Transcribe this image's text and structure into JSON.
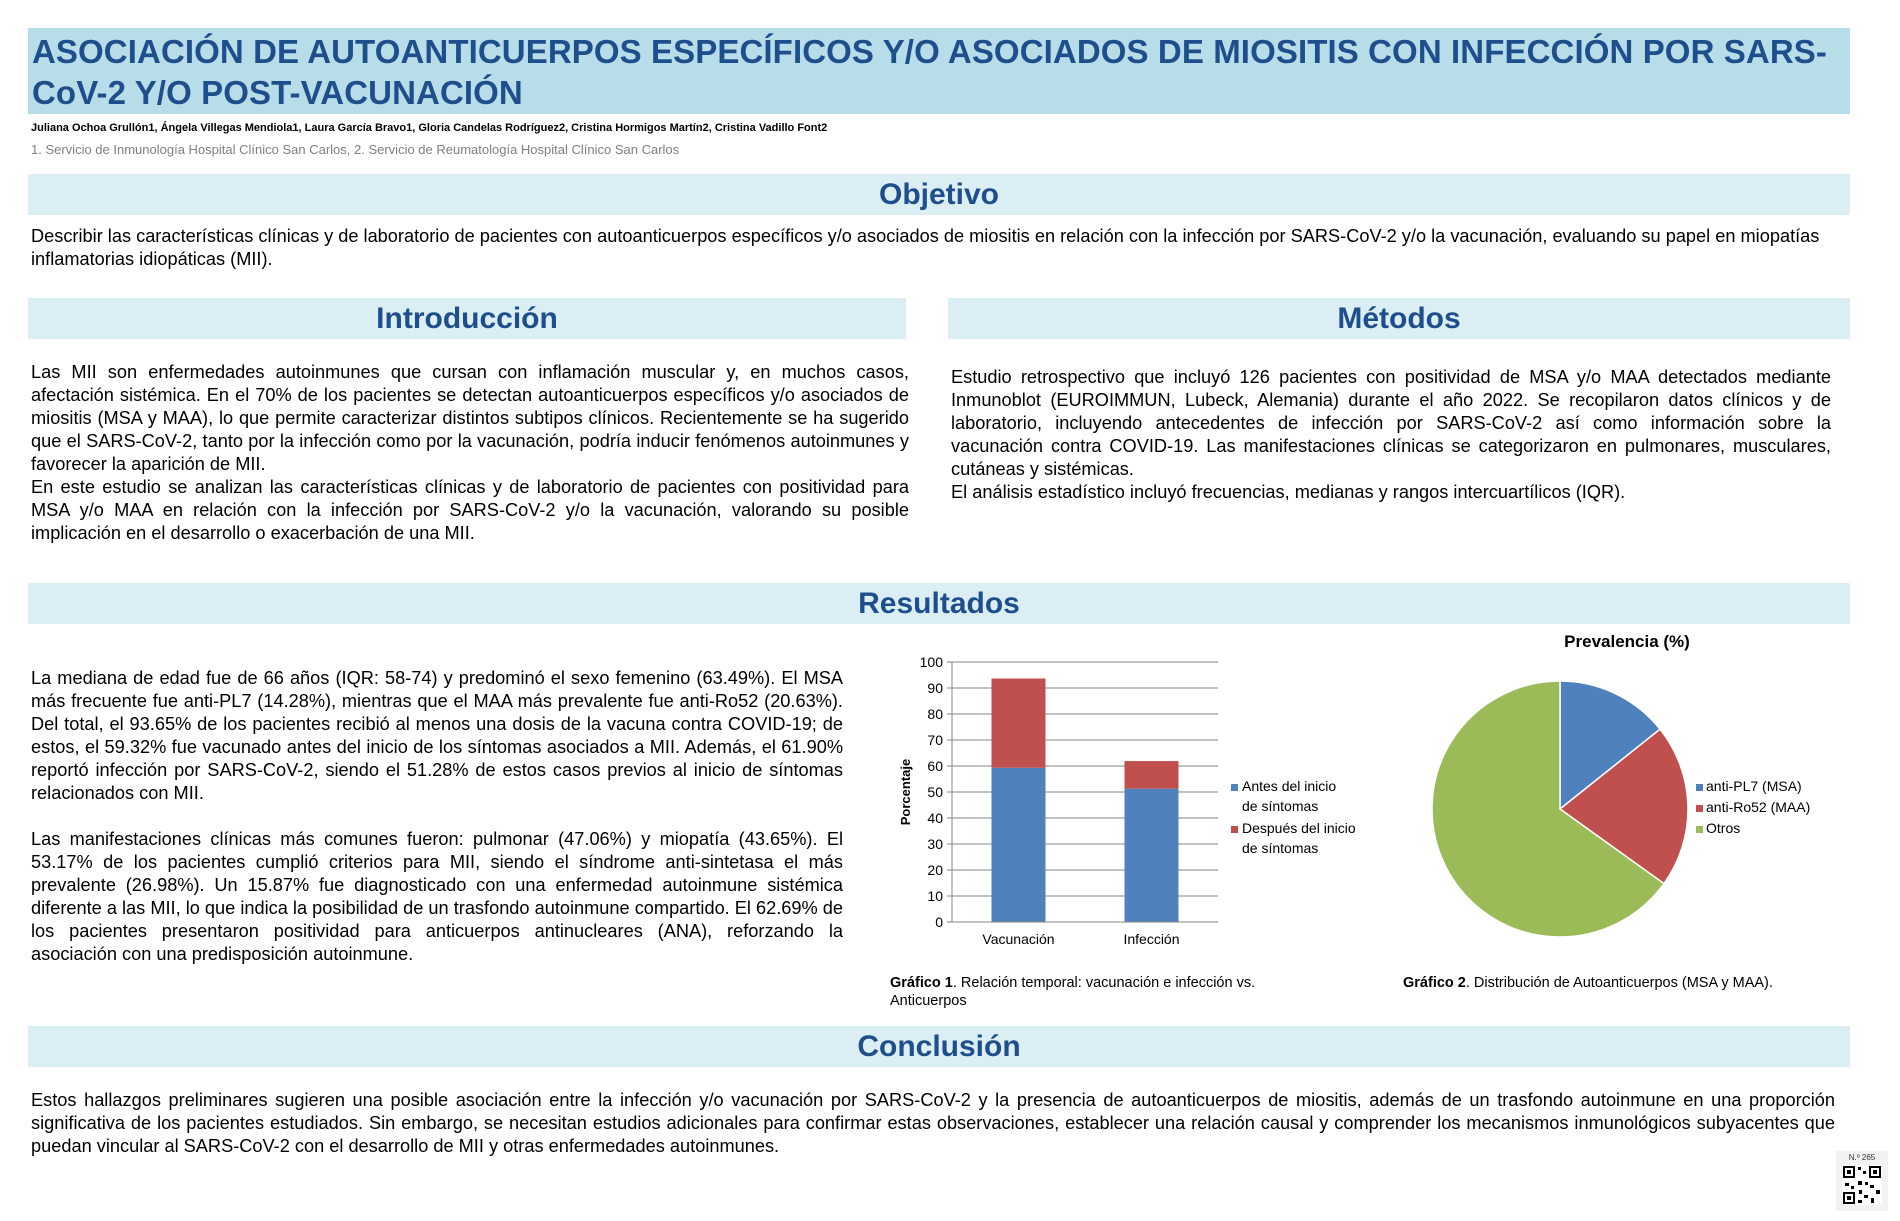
{
  "header": {
    "title": "ASOCIACIÓN DE AUTOANTICUERPOS ESPECÍFICOS Y/O ASOCIADOS DE MIOSITIS CON INFECCIÓN POR SARS-CoV-2 Y/O POST-VACUNACIÓN",
    "authors": "Juliana Ochoa Grullón1, Ángela Villegas Mendiola1, Laura García Bravo1, Gloria Candelas Rodríguez2, Cristina Hormigos Martín2, Cristina Vadillo Font2",
    "affiliations": "1. Servicio de Inmunología Hospital Clínico San Carlos, 2. Servicio de Reumatología Hospital Clínico San Carlos"
  },
  "objetivo": {
    "heading": "Objetivo",
    "text": "Describir las características clínicas y de laboratorio de pacientes con autoanticuerpos específicos y/o asociados de miositis en relación con la infección por SARS-CoV-2 y/o la vacunación, evaluando su papel en miopatías inflamatorias idiopáticas (MII)."
  },
  "introduccion": {
    "heading": "Introducción",
    "p1": "Las MII son enfermedades autoinmunes que cursan con inflamación muscular y, en muchos casos, afectación sistémica. En el 70% de los pacientes se detectan autoanticuerpos específicos y/o asociados de miositis (MSA y MAA), lo que permite caracterizar distintos subtipos clínicos. Recientemente se ha sugerido que el SARS-CoV-2, tanto por la infección como por la vacunación, podría inducir fenómenos autoinmunes y favorecer la aparición de MII.",
    "p2": "En este estudio se analizan las características clínicas y de laboratorio de pacientes con positividad para MSA y/o MAA en relación con la infección por SARS-CoV-2 y/o la vacunación, valorando su posible implicación en el desarrollo o exacerbación de una MII."
  },
  "metodos": {
    "heading": "Métodos",
    "p1": "Estudio retrospectivo que incluyó 126 pacientes con positividad de MSA y/o MAA detectados mediante Inmunoblot (EUROIMMUN, Lubeck, Alemania) durante el año 2022. Se recopilaron datos clínicos y de laboratorio, incluyendo antecedentes de infección por SARS-CoV-2 así como información sobre la vacunación contra COVID-19. Las manifestaciones clínicas se categorizaron en pulmonares, musculares, cutáneas y sistémicas.",
    "p2": "El análisis estadístico incluyó frecuencias, medianas y rangos intercuartílicos (IQR)."
  },
  "resultados": {
    "heading": "Resultados",
    "p1": "La mediana de edad fue de 66 años (IQR: 58-74) y predominó el sexo femenino (63.49%). El MSA más frecuente fue anti-PL7 (14.28%), mientras que el MAA más prevalente fue anti-Ro52 (20.63%). Del total, el 93.65% de los pacientes recibió al menos una dosis de la vacuna contra COVID-19; de estos, el 59.32% fue vacunado antes del inicio de los síntomas asociados a MII. Además, el 61.90% reportó infección por SARS-CoV-2, siendo el 51.28% de estos casos previos al inicio de síntomas relacionados con MII.",
    "p2": "Las manifestaciones clínicas más comunes fueron: pulmonar (47.06%) y miopatía (43.65%). El 53.17% de los pacientes cumplió criterios para MII, siendo el síndrome anti-sintetasa el más prevalente (26.98%). Un 15.87% fue diagnosticado con una enfermedad autoinmune sistémica diferente a las MII, lo que indica la posibilidad de un trasfondo autoinmune compartido. El 62.69% de los pacientes presentaron positividad para anticuerpos antinucleares (ANA), reforzando la asociación con una predisposición autoinmune.",
    "caption1_bold": "Gráfico 1",
    "caption1_rest": ". Relación temporal: vacunación e infección vs. Anticuerpos",
    "caption2_bold": "Gráfico 2",
    "caption2_rest": ". Distribución de Autoanticuerpos (MSA y MAA)."
  },
  "conclusion": {
    "heading": "Conclusión",
    "text": "Estos hallazgos preliminares sugieren una posible asociación entre la infección y/o vacunación por SARS-CoV-2 y la presencia de autoanticuerpos de miositis, además de un trasfondo autoinmune en una proporción significativa de los pacientes estudiados. Sin embargo, se necesitan estudios adicionales para confirmar estas observaciones, establecer una relación causal y comprender los mecanismos inmunológicos subyacentes que puedan vincular al SARS-CoV-2 con el desarrollo de MII y otras enfermedades autoinmunes."
  },
  "footer": {
    "poster_number": "N.º 265"
  },
  "chart_data": [
    {
      "type": "bar",
      "stacked": true,
      "categories": [
        "Vacunación",
        "Infección"
      ],
      "series": [
        {
          "name": "Antes del inicio de síntomas",
          "values": [
            59.32,
            51.28
          ],
          "color": "#4f81bd"
        },
        {
          "name": "Después del inicio de síntomas",
          "values": [
            34.33,
            10.62
          ],
          "color": "#c0504d"
        }
      ],
      "ylabel": "Porcentaje",
      "ylim": [
        0,
        100
      ],
      "yticks": [
        0,
        10,
        20,
        30,
        40,
        50,
        60,
        70,
        80,
        90,
        100
      ],
      "grid": true,
      "legend": "right"
    },
    {
      "type": "pie",
      "title": "Prevalencia (%)",
      "labels": [
        "anti-PL7 (MSA)",
        "anti-Ro52 (MAA)",
        "Otros"
      ],
      "values": [
        14.28,
        20.63,
        65.09
      ],
      "colors": [
        "#4f81bd",
        "#c0504d",
        "#9bbb59"
      ],
      "legend": "right"
    }
  ]
}
